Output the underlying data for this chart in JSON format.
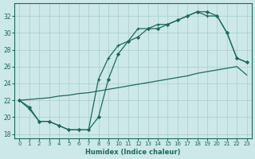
{
  "xlabel": "Humidex (Indice chaleur)",
  "bg_color": "#cce8e8",
  "grid_color": "#aacccc",
  "line_color": "#1a6b5a",
  "xlim": [
    -0.5,
    23.5
  ],
  "ylim": [
    17.5,
    33.5
  ],
  "xticks": [
    0,
    1,
    2,
    3,
    4,
    5,
    6,
    7,
    8,
    9,
    10,
    11,
    12,
    13,
    14,
    15,
    16,
    17,
    18,
    19,
    20,
    21,
    22,
    23
  ],
  "yticks": [
    18,
    20,
    22,
    24,
    26,
    28,
    30,
    32
  ],
  "curve1_x": [
    0,
    1,
    2,
    3,
    4,
    5,
    6,
    7,
    8,
    9,
    10,
    11,
    12,
    13,
    14,
    15,
    16,
    17,
    18,
    19,
    20,
    21,
    22,
    23
  ],
  "curve1_y": [
    22.0,
    22.1,
    22.2,
    22.3,
    22.5,
    22.6,
    22.8,
    22.9,
    23.1,
    23.3,
    23.5,
    23.7,
    23.9,
    24.1,
    24.3,
    24.5,
    24.7,
    24.9,
    25.2,
    25.4,
    25.6,
    25.8,
    26.0,
    25.0
  ],
  "curve2_x": [
    0,
    1,
    2,
    3,
    4,
    5,
    6,
    7,
    8,
    9,
    10,
    11,
    12,
    13,
    14,
    15,
    16,
    17,
    18,
    19,
    20,
    21,
    22,
    23
  ],
  "curve2_y": [
    22.0,
    21.0,
    19.5,
    19.5,
    19.0,
    18.5,
    18.5,
    18.5,
    24.5,
    27.0,
    28.5,
    29.0,
    30.5,
    30.5,
    31.0,
    31.0,
    31.5,
    32.0,
    32.5,
    32.0,
    32.0,
    30.0,
    27.0,
    26.5
  ],
  "curve3_x": [
    0,
    1,
    2,
    3,
    4,
    5,
    6,
    7,
    8,
    9,
    10,
    11,
    12,
    13,
    14,
    15,
    16,
    17,
    18,
    19,
    20,
    21,
    22,
    23
  ],
  "curve3_y": [
    22.0,
    21.2,
    19.5,
    19.5,
    19.0,
    18.5,
    18.5,
    18.5,
    20.0,
    24.5,
    27.5,
    29.0,
    29.5,
    30.5,
    30.5,
    31.0,
    31.5,
    32.0,
    32.5,
    32.5,
    32.0,
    30.0,
    27.0,
    26.5
  ]
}
